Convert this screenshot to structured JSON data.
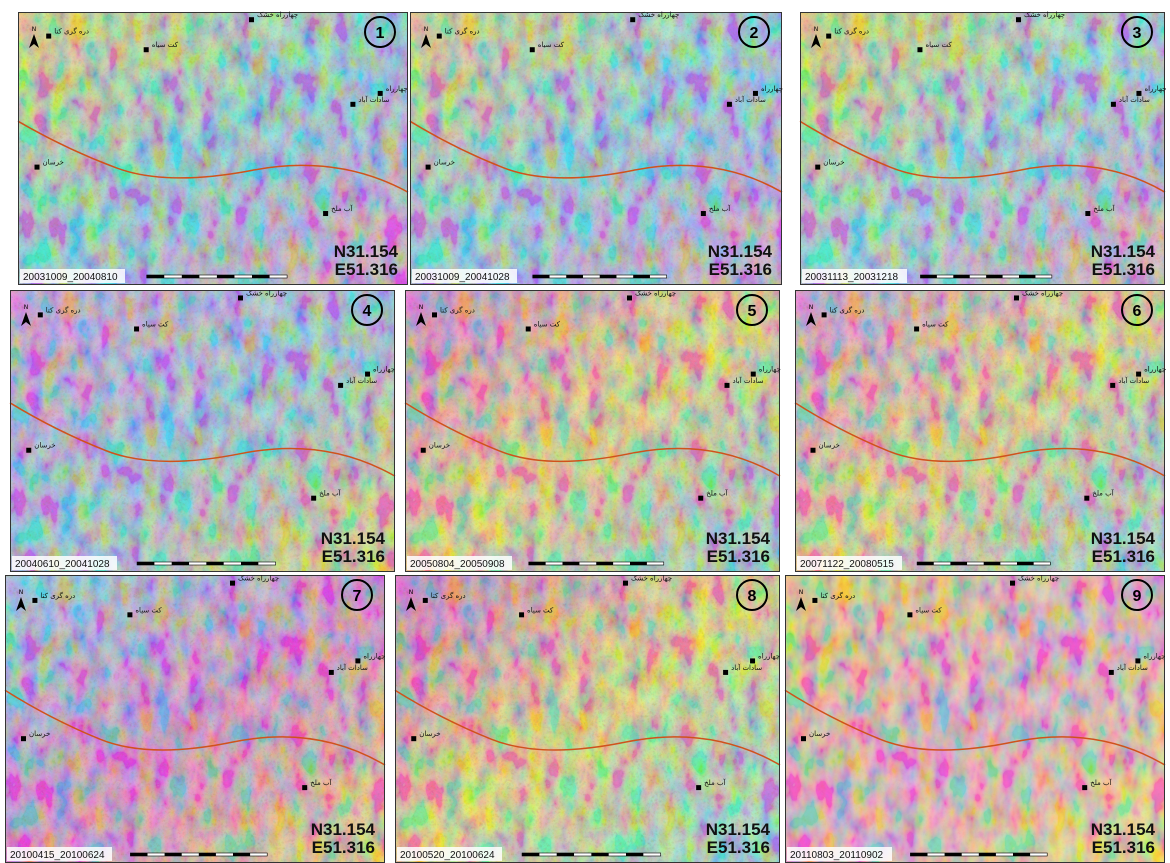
{
  "north": "N",
  "coordinates": {
    "lat": "N31.154",
    "lon": "E51.316"
  },
  "places": [
    "چهارراه خشک",
    "دره گری کتا",
    "کت سیاه",
    "چهارراه",
    "سادات آباد",
    "خرسان",
    "آب ملخ"
  ],
  "panels": [
    {
      "number": "1",
      "dates": "20031009_20040810"
    },
    {
      "number": "2",
      "dates": "20031009_20041028"
    },
    {
      "number": "3",
      "dates": "20031113_20031218"
    },
    {
      "number": "4",
      "dates": "20040610_20041028"
    },
    {
      "number": "5",
      "dates": "20050804_20050908"
    },
    {
      "number": "6",
      "dates": "20071122_20080515"
    },
    {
      "number": "7",
      "dates": "20100415_20100624"
    },
    {
      "number": "8",
      "dates": "20100520_20100624"
    },
    {
      "number": "9",
      "dates": "20110803_20110902"
    }
  ]
}
